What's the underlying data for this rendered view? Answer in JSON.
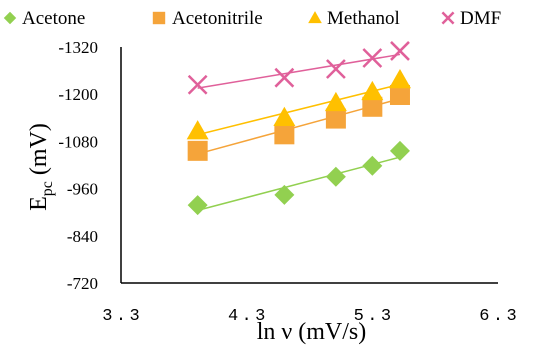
{
  "chart_data": {
    "type": "scatter",
    "title": "",
    "xlabel": "ln ν (mV/s)",
    "ylabel": "Epc (mV)",
    "ylabel_main": "E",
    "ylabel_sub": "pc",
    "ylabel_rest": " (mV)",
    "xlim": [
      3.3,
      6.3
    ],
    "ylim": [
      -720,
      -1320
    ],
    "x_ticks": [
      3.3,
      4.3,
      5.3,
      6.3
    ],
    "x_tick_labels": [
      "3.3",
      "4.3",
      "5.3",
      "6.3"
    ],
    "y_ticks": [
      -720,
      -840,
      -960,
      -1080,
      -1200,
      -1320
    ],
    "y_tick_labels": [
      "-720",
      "-840",
      "-960",
      "-1080",
      "-1200",
      "-1320"
    ],
    "grid": false,
    "legend_position": "top",
    "series": [
      {
        "name": "Acetone",
        "marker": "diamond",
        "color": "#92d050",
        "trendline": true,
        "x": [
          3.91,
          4.6,
          5.01,
          5.3,
          5.52
        ],
        "y": [
          -918,
          -944,
          -990,
          -1018,
          -1056
        ]
      },
      {
        "name": "Acetonitrile",
        "marker": "square",
        "color": "#f5a43a",
        "trendline": true,
        "x": [
          3.91,
          4.6,
          5.01,
          5.3,
          5.52
        ],
        "y": [
          -1056,
          -1098,
          -1138,
          -1168,
          -1198
        ]
      },
      {
        "name": "Methanol",
        "marker": "triangle",
        "color": "#ffc000",
        "trendline": true,
        "x": [
          3.91,
          4.6,
          5.01,
          5.3,
          5.52
        ],
        "y": [
          -1106,
          -1140,
          -1178,
          -1206,
          -1236
        ]
      },
      {
        "name": "DMF",
        "marker": "x",
        "color": "#e0609a",
        "trendline": true,
        "x": [
          3.91,
          4.6,
          5.01,
          5.3,
          5.52
        ],
        "y": [
          -1224,
          -1242,
          -1264,
          -1292,
          -1310
        ]
      }
    ]
  }
}
